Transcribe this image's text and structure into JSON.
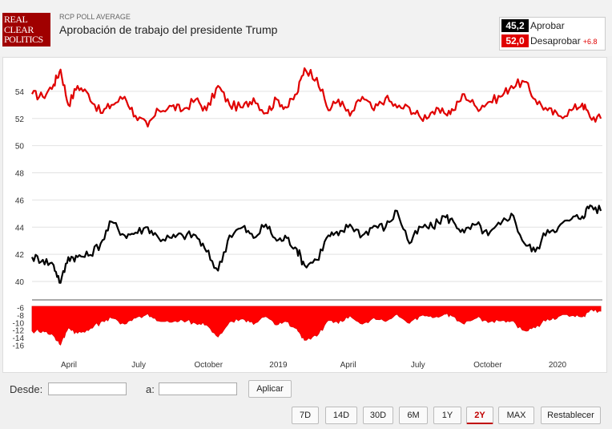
{
  "header": {
    "logo_lines": [
      "REAL",
      "CLEAR",
      "POLITICS"
    ],
    "subtitle": "RCP POLL AVERAGE",
    "title": "Aprobación de trabajo del presidente Trump"
  },
  "legend": {
    "approve": {
      "value": "45,2",
      "label": "Aprobar",
      "color": "#000000"
    },
    "disapprove": {
      "value": "52,0",
      "label": "Desaprobar",
      "color": "#e00000",
      "diff": "+6.8"
    }
  },
  "controls": {
    "from_label": "Desde:",
    "to_label": "a:",
    "from_value": "",
    "to_value": "",
    "apply_label": "Aplicar",
    "ranges": [
      "7D",
      "14D",
      "30D",
      "6M",
      "1Y",
      "2Y",
      "MAX"
    ],
    "active_range": "2Y",
    "reset_label": "Restablecer"
  },
  "chart_data": {
    "type": "line",
    "x_labels": [
      "April",
      "July",
      "October",
      "2019",
      "April",
      "July",
      "October",
      "2020"
    ],
    "y_ticks": [
      40,
      42,
      44,
      46,
      48,
      50,
      52,
      54
    ],
    "ylim": [
      39,
      56
    ],
    "spread_ticks": [
      -6,
      -8,
      -10,
      -12,
      -14,
      -16
    ],
    "spread_ylim": [
      -16.5,
      -5.5
    ],
    "x_range": [
      "2018-02-01",
      "2020-02-10"
    ],
    "series": [
      {
        "name": "Desaprobar",
        "color": "#e00000",
        "points": [
          [
            "2018-02-01",
            53.8
          ],
          [
            "2018-02-15",
            53.6
          ],
          [
            "2018-03-01",
            54.5
          ],
          [
            "2018-03-10",
            55.6
          ],
          [
            "2018-03-20",
            53.0
          ],
          [
            "2018-04-01",
            54.4
          ],
          [
            "2018-04-15",
            53.8
          ],
          [
            "2018-05-01",
            52.4
          ],
          [
            "2018-05-15",
            53.0
          ],
          [
            "2018-06-01",
            53.6
          ],
          [
            "2018-06-15",
            52.2
          ],
          [
            "2018-07-01",
            51.4
          ],
          [
            "2018-07-15",
            52.6
          ],
          [
            "2018-08-01",
            52.9
          ],
          [
            "2018-08-15",
            52.6
          ],
          [
            "2018-09-01",
            53.4
          ],
          [
            "2018-09-15",
            52.6
          ],
          [
            "2018-09-30",
            54.4
          ],
          [
            "2018-10-15",
            53.0
          ],
          [
            "2018-11-01",
            52.8
          ],
          [
            "2018-11-15",
            53.5
          ],
          [
            "2018-12-01",
            52.4
          ],
          [
            "2018-12-15",
            53.4
          ],
          [
            "2018-12-28",
            52.8
          ],
          [
            "2019-01-10",
            53.8
          ],
          [
            "2019-01-20",
            55.7
          ],
          [
            "2019-02-05",
            55.0
          ],
          [
            "2019-02-20",
            52.6
          ],
          [
            "2019-03-05",
            53.4
          ],
          [
            "2019-03-20",
            52.2
          ],
          [
            "2019-04-05",
            53.6
          ],
          [
            "2019-04-20",
            52.6
          ],
          [
            "2019-05-05",
            53.5
          ],
          [
            "2019-05-20",
            52.8
          ],
          [
            "2019-06-05",
            52.8
          ],
          [
            "2019-06-20",
            52.0
          ],
          [
            "2019-07-05",
            52.5
          ],
          [
            "2019-07-20",
            52.4
          ],
          [
            "2019-08-01",
            52.6
          ],
          [
            "2019-08-15",
            53.8
          ],
          [
            "2019-08-31",
            52.8
          ],
          [
            "2019-09-15",
            53.2
          ],
          [
            "2019-10-01",
            53.6
          ],
          [
            "2019-10-15",
            54.4
          ],
          [
            "2019-11-01",
            54.7
          ],
          [
            "2019-11-15",
            53.4
          ],
          [
            "2019-12-01",
            52.6
          ],
          [
            "2019-12-15",
            52.2
          ],
          [
            "2020-01-01",
            52.6
          ],
          [
            "2020-01-15",
            53.1
          ],
          [
            "2020-01-25",
            52.1
          ],
          [
            "2020-02-08",
            52.0
          ]
        ]
      },
      {
        "name": "Aprobar",
        "color": "#000000",
        "points": [
          [
            "2018-02-01",
            41.8
          ],
          [
            "2018-02-15",
            41.6
          ],
          [
            "2018-03-01",
            41.2
          ],
          [
            "2018-03-10",
            39.9
          ],
          [
            "2018-03-20",
            41.8
          ],
          [
            "2018-04-01",
            41.8
          ],
          [
            "2018-04-15",
            41.9
          ],
          [
            "2018-05-01",
            42.8
          ],
          [
            "2018-05-15",
            44.4
          ],
          [
            "2018-06-01",
            43.4
          ],
          [
            "2018-06-15",
            43.6
          ],
          [
            "2018-07-01",
            44.0
          ],
          [
            "2018-07-15",
            43.2
          ],
          [
            "2018-08-01",
            43.2
          ],
          [
            "2018-08-15",
            43.4
          ],
          [
            "2018-09-01",
            43.4
          ],
          [
            "2018-09-15",
            42.2
          ],
          [
            "2018-09-30",
            40.8
          ],
          [
            "2018-10-15",
            43.4
          ],
          [
            "2018-11-01",
            44.0
          ],
          [
            "2018-11-15",
            43.2
          ],
          [
            "2018-12-01",
            44.2
          ],
          [
            "2018-12-15",
            43.0
          ],
          [
            "2018-12-28",
            43.2
          ],
          [
            "2019-01-10",
            42.4
          ],
          [
            "2019-01-20",
            41.2
          ],
          [
            "2019-02-05",
            41.6
          ],
          [
            "2019-02-20",
            43.4
          ],
          [
            "2019-03-05",
            43.4
          ],
          [
            "2019-03-20",
            44.2
          ],
          [
            "2019-04-05",
            43.4
          ],
          [
            "2019-04-20",
            44.1
          ],
          [
            "2019-05-05",
            44.0
          ],
          [
            "2019-05-20",
            45.2
          ],
          [
            "2019-06-05",
            42.8
          ],
          [
            "2019-06-20",
            44.0
          ],
          [
            "2019-07-05",
            44.0
          ],
          [
            "2019-07-20",
            44.8
          ],
          [
            "2019-08-01",
            44.4
          ],
          [
            "2019-08-15",
            43.6
          ],
          [
            "2019-08-31",
            44.2
          ],
          [
            "2019-09-15",
            43.4
          ],
          [
            "2019-10-01",
            44.2
          ],
          [
            "2019-10-15",
            45.0
          ],
          [
            "2019-11-01",
            42.8
          ],
          [
            "2019-11-15",
            42.2
          ],
          [
            "2019-12-01",
            43.8
          ],
          [
            "2019-12-15",
            44.0
          ],
          [
            "2020-01-01",
            44.6
          ],
          [
            "2020-01-15",
            44.8
          ],
          [
            "2020-01-25",
            45.6
          ],
          [
            "2020-02-08",
            45.2
          ]
        ]
      }
    ]
  }
}
